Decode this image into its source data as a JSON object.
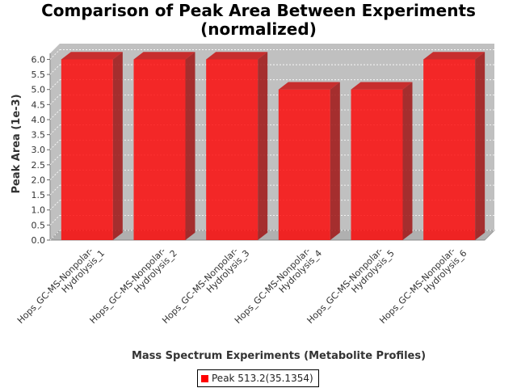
{
  "title_line1": "Comparison of Peak Area Between Experiments",
  "title_line2": "(normalized)",
  "chart_data": {
    "type": "bar",
    "title": "Comparison of Peak Area Between Experiments (normalized)",
    "xlabel": "Mass Spectrum Experiments (Metabolite Profiles)",
    "ylabel": "Peak Area (1e-3)",
    "categories": [
      [
        "Hops_GC-MS-Nonpolar-",
        "Hydrolysis_1"
      ],
      [
        "Hops_GC-MS-Nonpolar-",
        "Hydrolysis_2"
      ],
      [
        "Hops_GC-MS-Nonpolar-",
        "Hydrolysis_3"
      ],
      [
        "Hops_GC-MS-Nonpolar-",
        "Hydrolysis_4"
      ],
      [
        "Hops_GC-MS-Nonpolar-",
        "Hydrolysis_5"
      ],
      [
        "Hops_GC-MS-Nonpolar-",
        "Hydrolysis_6"
      ]
    ],
    "series": [
      {
        "name": "Peak 513.2(35.1354)",
        "color": "#ff0000",
        "values": [
          6.0,
          6.0,
          6.0,
          5.0,
          5.0,
          6.0
        ]
      }
    ],
    "ylim": [
      0,
      6.2
    ],
    "yticks": [
      "0.0",
      "0.5",
      "1.0",
      "1.5",
      "2.0",
      "2.5",
      "3.0",
      "3.5",
      "4.0",
      "4.5",
      "5.0",
      "5.5",
      "6.0"
    ],
    "grid": true,
    "legend_position": "bottom"
  }
}
